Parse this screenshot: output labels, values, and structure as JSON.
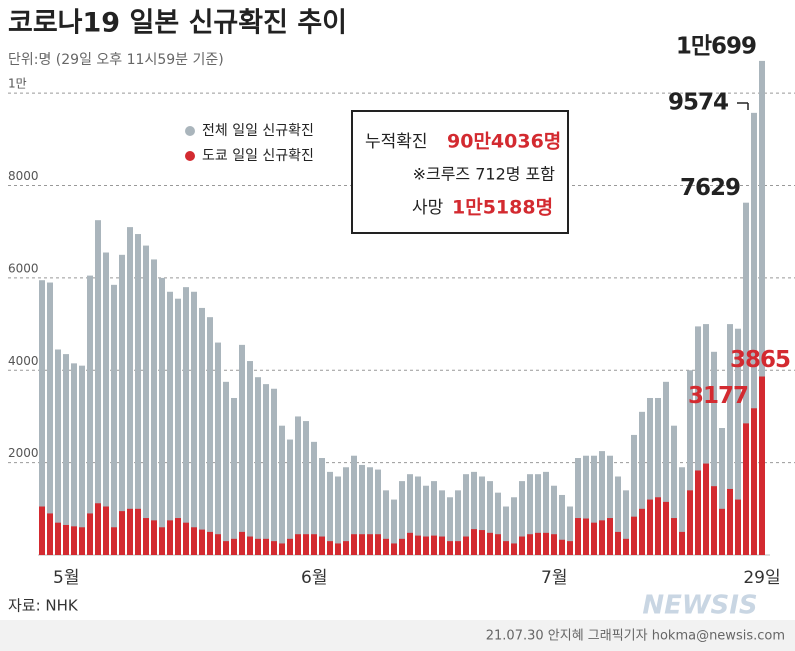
{
  "chart_data": {
    "type": "bar",
    "title": "코로나19 일본 신규확진 추이",
    "subtitle": "단위:명 (29일 오후 11시59분 기준)",
    "categories": [
      null,
      "5월",
      null,
      null,
      null,
      null,
      null,
      null,
      null,
      null,
      null,
      null,
      null,
      null,
      null,
      null,
      null,
      null,
      null,
      null,
      null,
      null,
      null,
      null,
      null,
      null,
      null,
      null,
      null,
      null,
      null,
      null,
      "6월",
      null,
      null,
      null,
      null,
      null,
      null,
      null,
      null,
      null,
      null,
      null,
      null,
      null,
      null,
      null,
      null,
      null,
      null,
      null,
      null,
      null,
      null,
      null,
      null,
      null,
      null,
      null,
      null,
      null,
      "7월",
      null,
      null,
      null,
      null,
      null,
      null,
      null,
      null,
      null,
      null,
      null,
      null,
      null,
      null,
      null,
      null,
      null,
      null,
      null,
      null,
      null,
      null,
      null,
      null,
      null,
      null,
      null,
      "29일"
    ],
    "series": [
      {
        "name": "전체 일일 신규확진",
        "color": "#aab5bc",
        "values": [
          5950,
          5900,
          4450,
          4350,
          4150,
          4100,
          6050,
          7250,
          6550,
          5850,
          6500,
          7100,
          6950,
          6700,
          6400,
          6000,
          5700,
          5550,
          5800,
          5700,
          5350,
          5150,
          4600,
          3750,
          3400,
          4550,
          4200,
          3850,
          3700,
          3600,
          2800,
          2500,
          3000,
          2900,
          2450,
          2100,
          1800,
          1700,
          1900,
          2150,
          1950,
          1900,
          1850,
          1400,
          1200,
          1600,
          1750,
          1700,
          1500,
          1600,
          1400,
          1250,
          1400,
          1750,
          1800,
          1700,
          1600,
          1350,
          1050,
          1250,
          1600,
          1750,
          1750,
          1800,
          1500,
          1300,
          1050,
          2100,
          2150,
          2150,
          2250,
          2150,
          1700,
          1400,
          2600,
          3100,
          3400,
          3400,
          3750,
          2800,
          1900,
          4000,
          4950,
          5000,
          4400,
          2750,
          5000,
          4900,
          7629,
          9574,
          10699
        ],
        "value_labels": [
          null,
          null,
          null,
          null,
          null,
          null,
          null,
          null,
          null,
          null,
          null,
          null,
          null,
          null,
          null,
          null,
          null,
          null,
          null,
          null,
          null,
          null,
          null,
          null,
          null,
          null,
          null,
          null,
          null,
          null,
          null,
          null,
          null,
          null,
          null,
          null,
          null,
          null,
          null,
          null,
          null,
          null,
          null,
          null,
          null,
          null,
          null,
          null,
          null,
          null,
          null,
          null,
          null,
          null,
          null,
          null,
          null,
          null,
          null,
          null,
          null,
          null,
          null,
          null,
          null,
          null,
          null,
          null,
          null,
          null,
          null,
          null,
          null,
          null,
          null,
          null,
          null,
          null,
          null,
          null,
          null,
          null,
          null,
          null,
          null,
          null,
          null,
          null,
          "7629",
          "9574",
          "1만699"
        ]
      },
      {
        "name": "도쿄 일일 신규확진",
        "color": "#d32a30",
        "values": [
          1050,
          900,
          700,
          650,
          620,
          600,
          900,
          1120,
          1050,
          600,
          950,
          1000,
          1000,
          800,
          750,
          600,
          750,
          800,
          700,
          600,
          550,
          500,
          450,
          300,
          350,
          500,
          400,
          350,
          350,
          300,
          250,
          350,
          450,
          450,
          450,
          400,
          300,
          250,
          300,
          450,
          450,
          450,
          450,
          350,
          250,
          350,
          480,
          420,
          400,
          420,
          400,
          300,
          300,
          400,
          560,
          540,
          480,
          450,
          300,
          250,
          400,
          450,
          480,
          480,
          450,
          330,
          300,
          800,
          790,
          700,
          750,
          800,
          500,
          350,
          830,
          1000,
          1200,
          1250,
          1150,
          800,
          500,
          1400,
          1830,
          1980,
          1490,
          1000,
          1430,
          1200,
          2850,
          3177,
          3865
        ],
        "value_labels": [
          null,
          null,
          null,
          null,
          null,
          null,
          null,
          null,
          null,
          null,
          null,
          null,
          null,
          null,
          null,
          null,
          null,
          null,
          null,
          null,
          null,
          null,
          null,
          null,
          null,
          null,
          null,
          null,
          null,
          null,
          null,
          null,
          null,
          null,
          null,
          null,
          null,
          null,
          null,
          null,
          null,
          null,
          null,
          null,
          null,
          null,
          null,
          null,
          null,
          null,
          null,
          null,
          null,
          null,
          null,
          null,
          null,
          null,
          null,
          null,
          null,
          null,
          null,
          null,
          null,
          null,
          null,
          null,
          null,
          null,
          null,
          null,
          null,
          null,
          null,
          null,
          null,
          null,
          null,
          null,
          null,
          null,
          null,
          null,
          null,
          null,
          null,
          null,
          null,
          "3177",
          "3865"
        ]
      }
    ],
    "ylim": [
      0,
      11000
    ],
    "yticks": [
      2000,
      4000,
      6000,
      8000,
      {
        "value": 10000,
        "label": "1만"
      }
    ],
    "grid": true,
    "info_box": {
      "cumulative_label": "누적확진",
      "cumulative_value": "90만4036명",
      "note": "※크루즈 712명 포함",
      "deaths_label": "사망",
      "deaths_value": "1만5188명"
    },
    "source": "자료: NHK",
    "credit": "21.07.30 안지혜 그래픽기자 hokma@newsis.com",
    "watermark": "NEWSIS"
  }
}
